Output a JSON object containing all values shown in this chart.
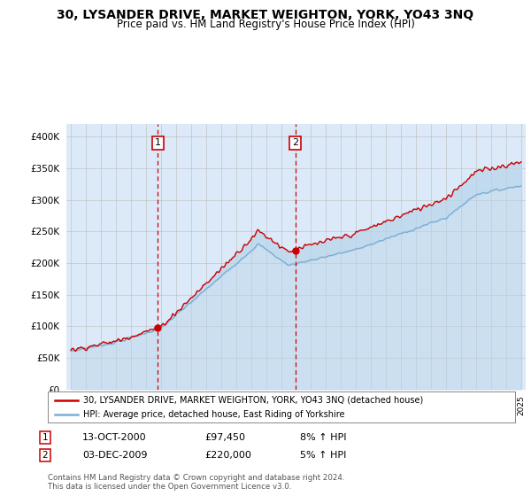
{
  "title": "30, LYSANDER DRIVE, MARKET WEIGHTON, YORK, YO43 3NQ",
  "subtitle": "Price paid vs. HM Land Registry's House Price Index (HPI)",
  "legend_line1": "30, LYSANDER DRIVE, MARKET WEIGHTON, YORK, YO43 3NQ (detached house)",
  "legend_line2": "HPI: Average price, detached house, East Riding of Yorkshire",
  "footnote": "Contains HM Land Registry data © Crown copyright and database right 2024.\nThis data is licensed under the Open Government Licence v3.0.",
  "sale1_date": "13-OCT-2000",
  "sale1_price": "£97,450",
  "sale1_hpi": "8% ↑ HPI",
  "sale2_date": "03-DEC-2009",
  "sale2_price": "£220,000",
  "sale2_hpi": "5% ↑ HPI",
  "x_start_year": 1995,
  "x_end_year": 2025,
  "ylim": [
    0,
    420000
  ],
  "yticks": [
    0,
    50000,
    100000,
    150000,
    200000,
    250000,
    300000,
    350000,
    400000
  ],
  "background_color": "#dce9f8",
  "plot_bg": "#ffffff",
  "red_line_color": "#cc0000",
  "blue_line_color": "#7aafd4",
  "blue_fill_color": "#b8d4ea",
  "vline_color": "#cc0000",
  "box_color": "#cc0000",
  "title_fontsize": 10,
  "subtitle_fontsize": 8.5
}
